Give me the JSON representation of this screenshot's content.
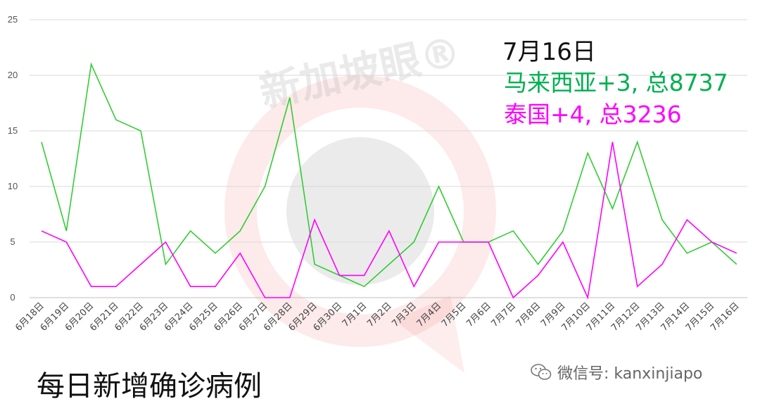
{
  "chart_data": {
    "type": "line",
    "categories": [
      "6月18日",
      "6月19日",
      "6月20日",
      "6月21日",
      "6月22日",
      "6月23日",
      "6月24日",
      "6月25日",
      "6月26日",
      "6月27日",
      "6月28日",
      "6月29日",
      "6月30日",
      "7月1日",
      "7月2日",
      "7月3日",
      "7月4日",
      "7月5日",
      "7月6日",
      "7月7日",
      "7月8日",
      "7月9日",
      "7月10日",
      "7月11日",
      "7月12日",
      "7月13日",
      "7月14日",
      "7月15日",
      "7月16日"
    ],
    "series": [
      {
        "color": "#33cc33",
        "values": [
          14,
          6,
          21,
          16,
          15,
          3,
          6,
          4,
          6,
          10,
          18,
          3,
          2,
          1,
          3,
          5,
          10,
          5,
          5,
          6,
          3,
          6,
          13,
          8,
          14,
          7,
          4,
          5,
          3
        ]
      },
      {
        "color": "#ff00ff",
        "values": [
          6,
          5,
          1,
          1,
          3,
          5,
          1,
          1,
          4,
          0,
          0,
          7,
          2,
          2,
          6,
          1,
          5,
          5,
          5,
          0,
          2,
          5,
          0,
          14,
          1,
          3,
          7,
          5,
          4
        ]
      }
    ],
    "yticks": [
      "0",
      "5",
      "10",
      "15",
      "20",
      "25"
    ],
    "ylim": [
      0,
      25
    ],
    "grid": true,
    "legend": "none",
    "annotations": {
      "date": "7月16日",
      "line1": "马来西亚+3, 总8737",
      "line1_color": "#00b050",
      "line2": "泰国+4, 总3236",
      "line2_color": "#ff00ff"
    }
  },
  "caption": "每日新增确诊病例",
  "watermark": {
    "text": "新加坡眼®"
  },
  "wechat": {
    "icon": "wechat-icon",
    "text": "微信号: kanxinjiapo"
  }
}
